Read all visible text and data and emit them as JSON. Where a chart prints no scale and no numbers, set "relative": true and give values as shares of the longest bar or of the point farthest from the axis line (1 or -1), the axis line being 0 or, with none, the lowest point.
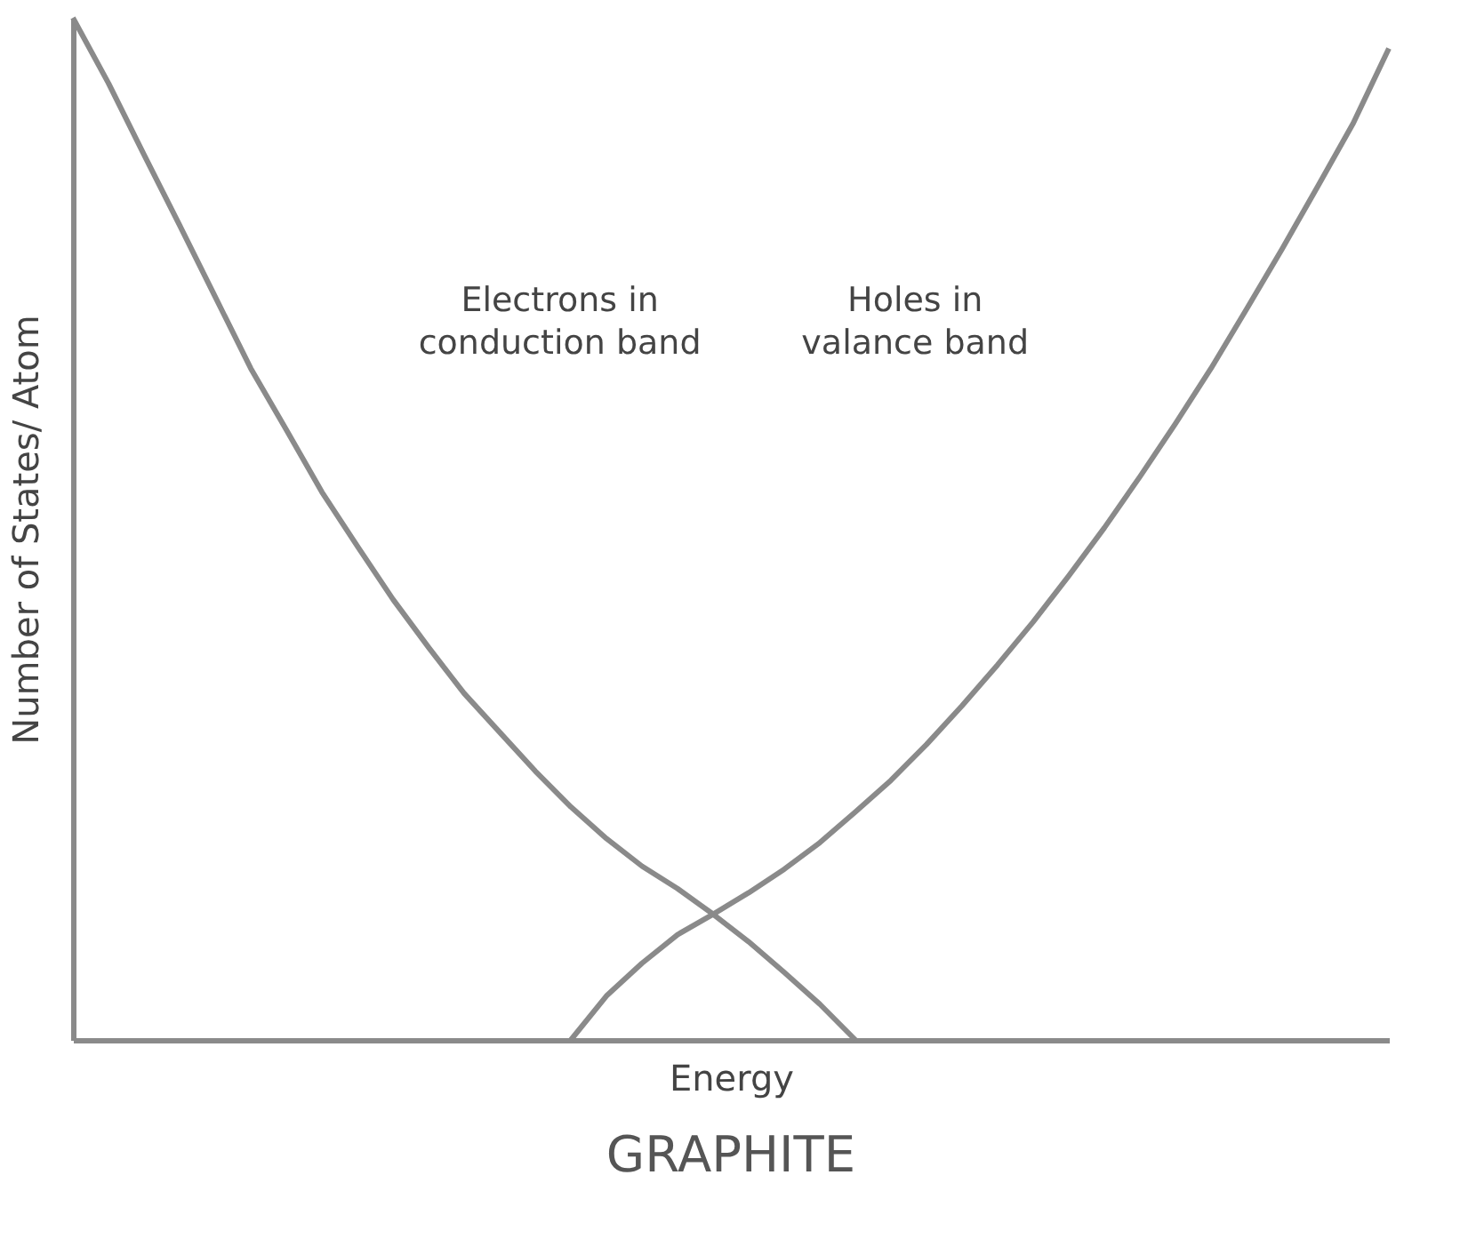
{
  "chart_data": {
    "type": "line",
    "relative": true,
    "title": "GRAPHITE",
    "xlabel": "Energy",
    "ylabel": "Number of States/ Atom",
    "categories": [
      null,
      null,
      null,
      null,
      null,
      null,
      null,
      null,
      null,
      null,
      null,
      null,
      null,
      null,
      null,
      null,
      null,
      null,
      null,
      null,
      null,
      null,
      null,
      null,
      null,
      null,
      null,
      null,
      null,
      null,
      null,
      null,
      null,
      null,
      null,
      null,
      null,
      null
    ],
    "series": [
      {
        "color": "#8a8a8a",
        "values": [
          1.0,
          0.936,
          0.866,
          0.797,
          0.727,
          0.657,
          0.597,
          0.536,
          0.483,
          0.431,
          0.384,
          0.339,
          0.301,
          0.263,
          0.228,
          0.197,
          0.17,
          0.148,
          0.123,
          0.096,
          0.066,
          0.035,
          0,
          null,
          null,
          null,
          null,
          null,
          null,
          null,
          null,
          null,
          null,
          null,
          null,
          null,
          null,
          null
        ]
      },
      {
        "color": "#8a8a8a",
        "values": [
          null,
          null,
          null,
          null,
          null,
          null,
          null,
          null,
          null,
          null,
          null,
          null,
          null,
          null,
          0,
          0.043,
          0.075,
          0.103,
          0.123,
          0.144,
          0.167,
          0.193,
          0.223,
          0.254,
          0.289,
          0.327,
          0.367,
          0.409,
          0.454,
          0.501,
          0.551,
          0.603,
          0.657,
          0.715,
          0.774,
          0.835,
          0.897,
          0.97
        ]
      }
    ],
    "annotations": [
      "Electrons in\nconduction band",
      "Holes in\nvalance band"
    ],
    "grid": false,
    "marker": "none",
    "line_style": "solid"
  }
}
